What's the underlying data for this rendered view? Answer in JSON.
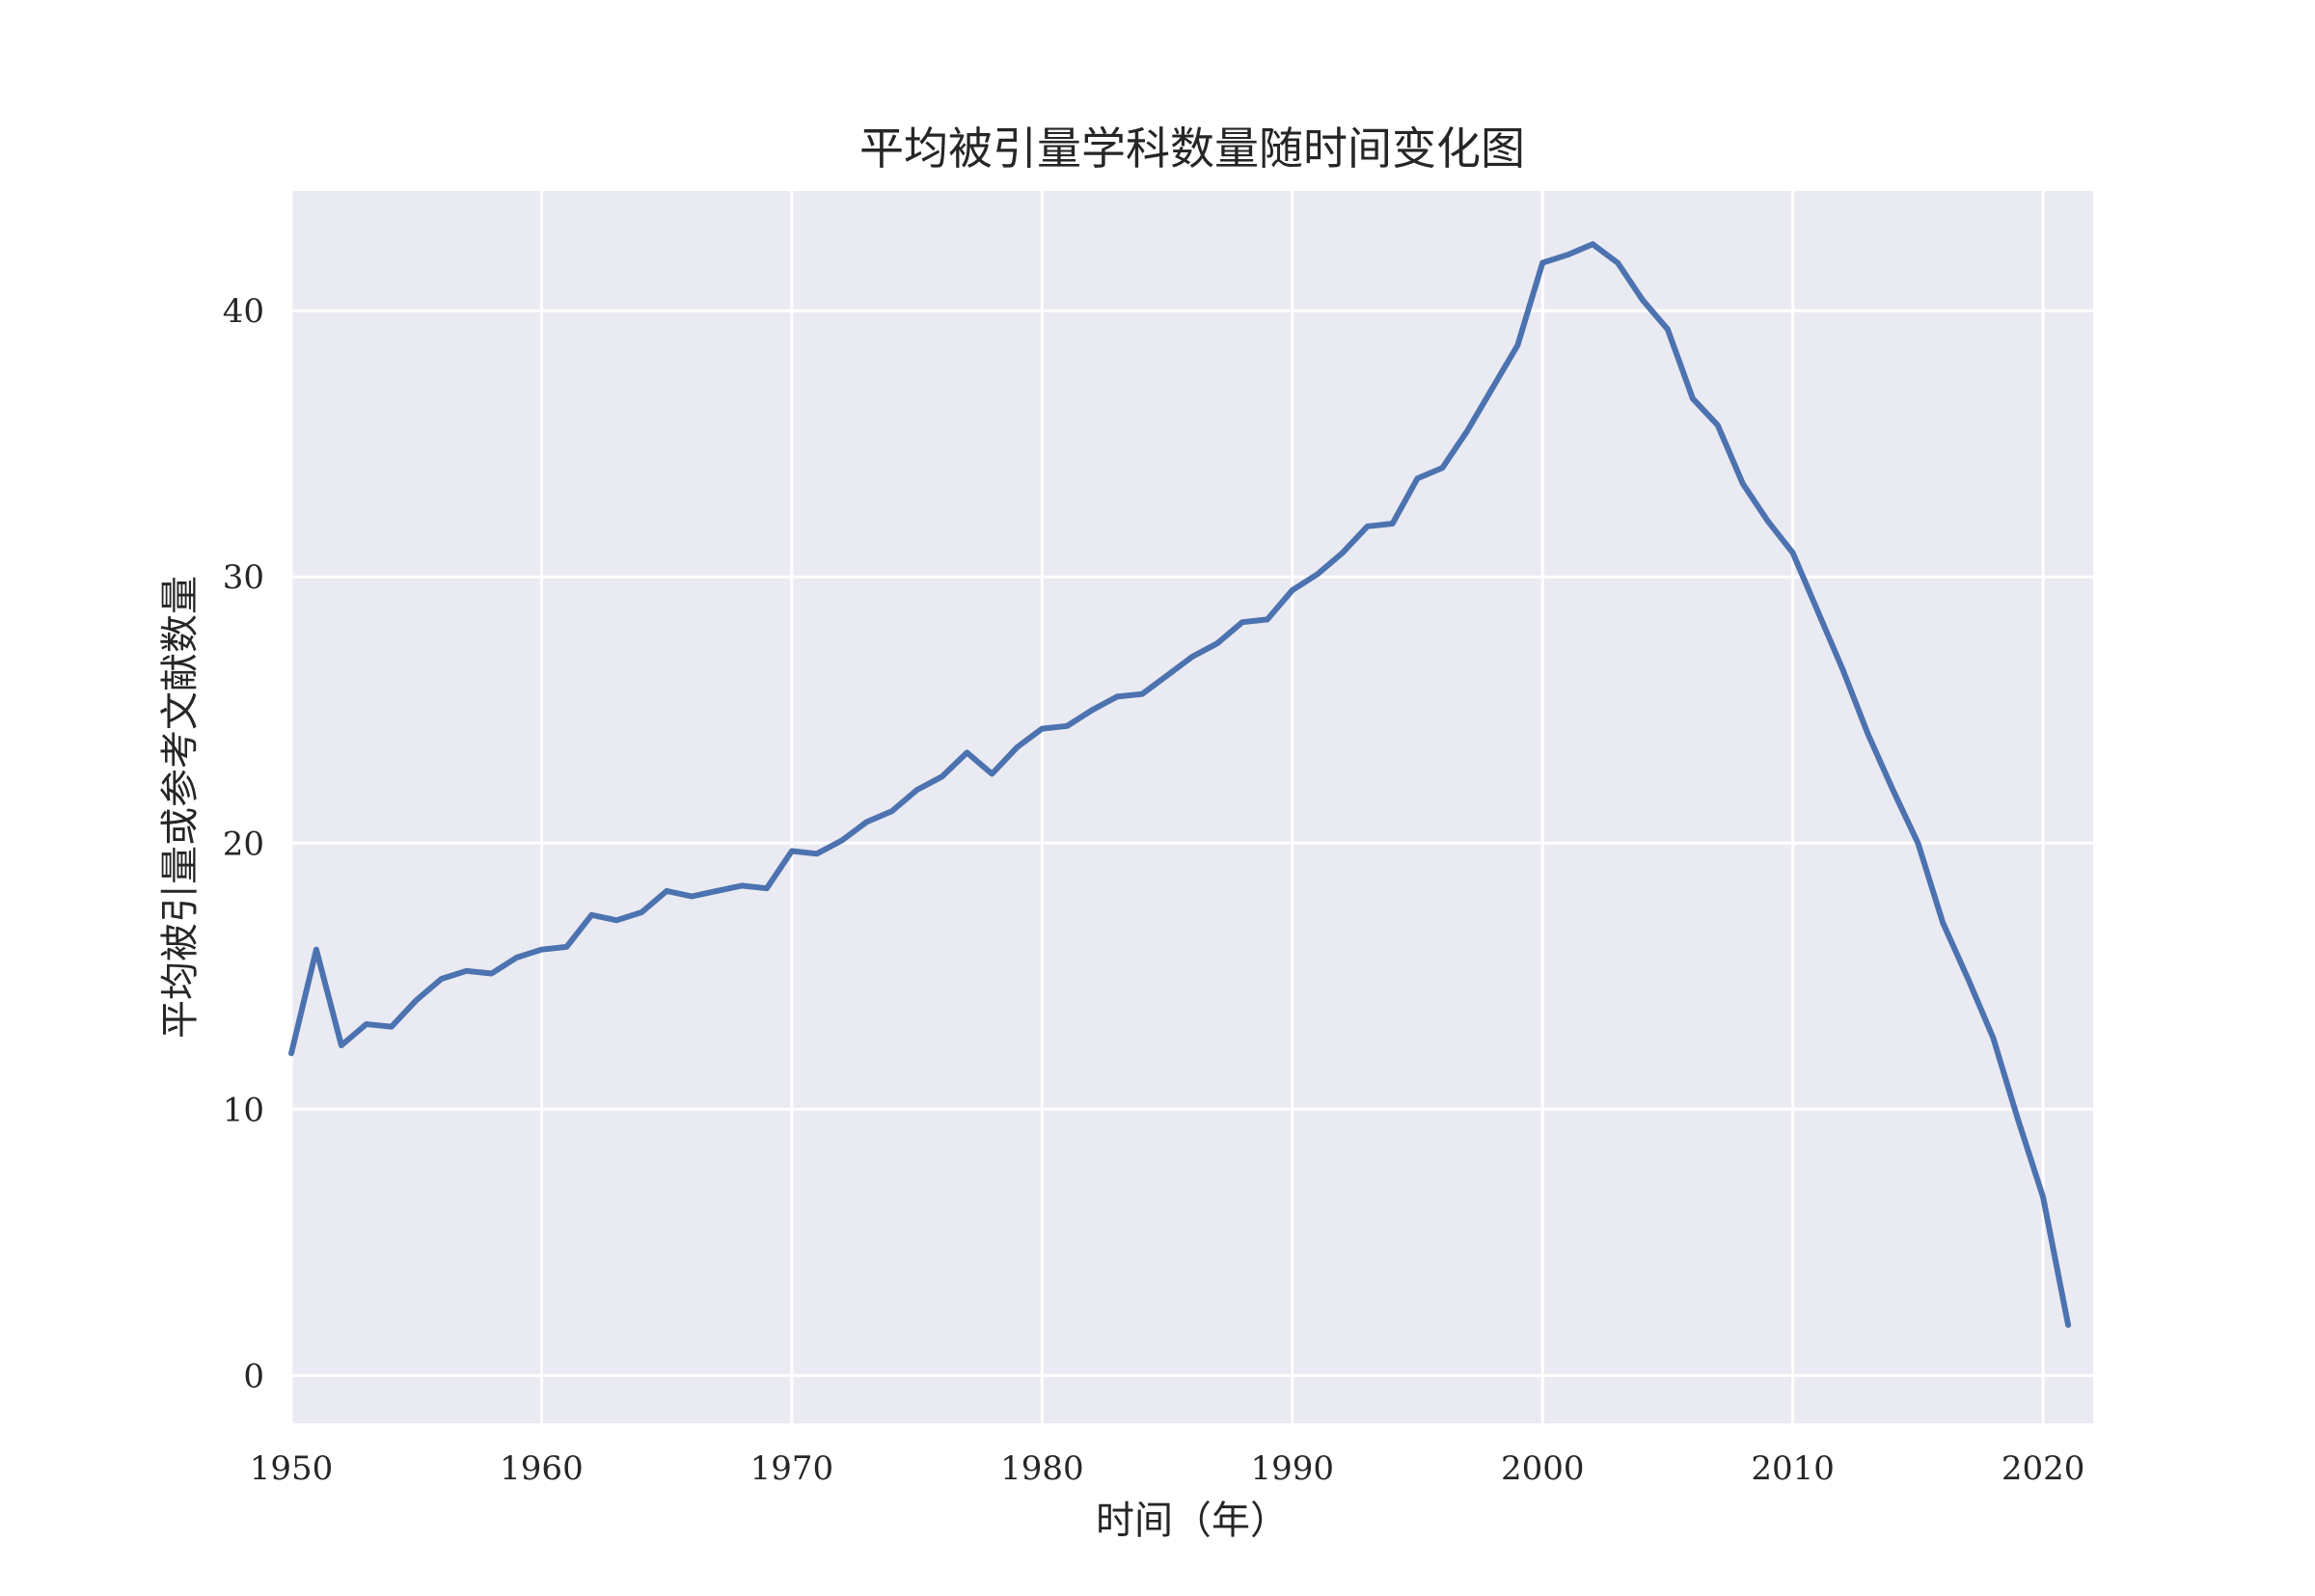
{
  "chart_data": {
    "type": "line",
    "title": "平均被引量学科数量随时间变化图",
    "xlabel": "时间（年）",
    "ylabel": "平均被引量或参考文献数量",
    "xlim": [
      1950,
      2022
    ],
    "ylim": [
      -1.8,
      44.5
    ],
    "xticks": [
      1950,
      1960,
      1970,
      1980,
      1990,
      2000,
      2010,
      2020
    ],
    "yticks": [
      0,
      10,
      20,
      30,
      40
    ],
    "grid": true,
    "legend": "none",
    "colors": {
      "line": "#4c72b0",
      "plot_bg": "#eaeaf2",
      "grid": "#ffffff"
    },
    "series": [
      {
        "x": [
          1950,
          1951,
          1952,
          1953,
          1954,
          1955,
          1956,
          1957,
          1958,
          1959,
          1960,
          1961,
          1962,
          1963,
          1964,
          1965,
          1966,
          1967,
          1968,
          1969,
          1970,
          1971,
          1972,
          1973,
          1974,
          1975,
          1976,
          1977,
          1978,
          1979,
          1980,
          1981,
          1982,
          1983,
          1984,
          1985,
          1986,
          1987,
          1988,
          1989,
          1990,
          1991,
          1992,
          1993,
          1994,
          1995,
          1996,
          1997,
          1998,
          1999,
          2000,
          2001,
          2002,
          2003,
          2004,
          2005,
          2006,
          2007,
          2008,
          2009,
          2010,
          2011,
          2012,
          2013,
          2014,
          2015,
          2016,
          2017,
          2018,
          2019,
          2020,
          2021
        ],
        "values": [
          12.1,
          16.0,
          12.4,
          13.2,
          13.1,
          14.1,
          14.9,
          15.2,
          15.1,
          15.7,
          16.0,
          16.1,
          17.3,
          17.1,
          17.4,
          18.2,
          18.0,
          18.2,
          18.4,
          18.3,
          19.7,
          19.6,
          20.1,
          20.8,
          21.2,
          22.0,
          22.5,
          23.4,
          22.6,
          23.6,
          24.3,
          24.4,
          25.0,
          25.5,
          25.6,
          26.3,
          27.0,
          27.5,
          28.3,
          28.4,
          29.5,
          30.1,
          30.9,
          31.9,
          32.0,
          33.7,
          34.1,
          35.5,
          37.1,
          38.7,
          41.8,
          42.1,
          42.5,
          41.8,
          40.4,
          39.3,
          36.7,
          35.7,
          33.5,
          32.1,
          30.9,
          28.7,
          26.5,
          24.1,
          22.0,
          20.0,
          17.0,
          14.9,
          12.7,
          9.6,
          6.7,
          1.9
        ]
      }
    ]
  }
}
